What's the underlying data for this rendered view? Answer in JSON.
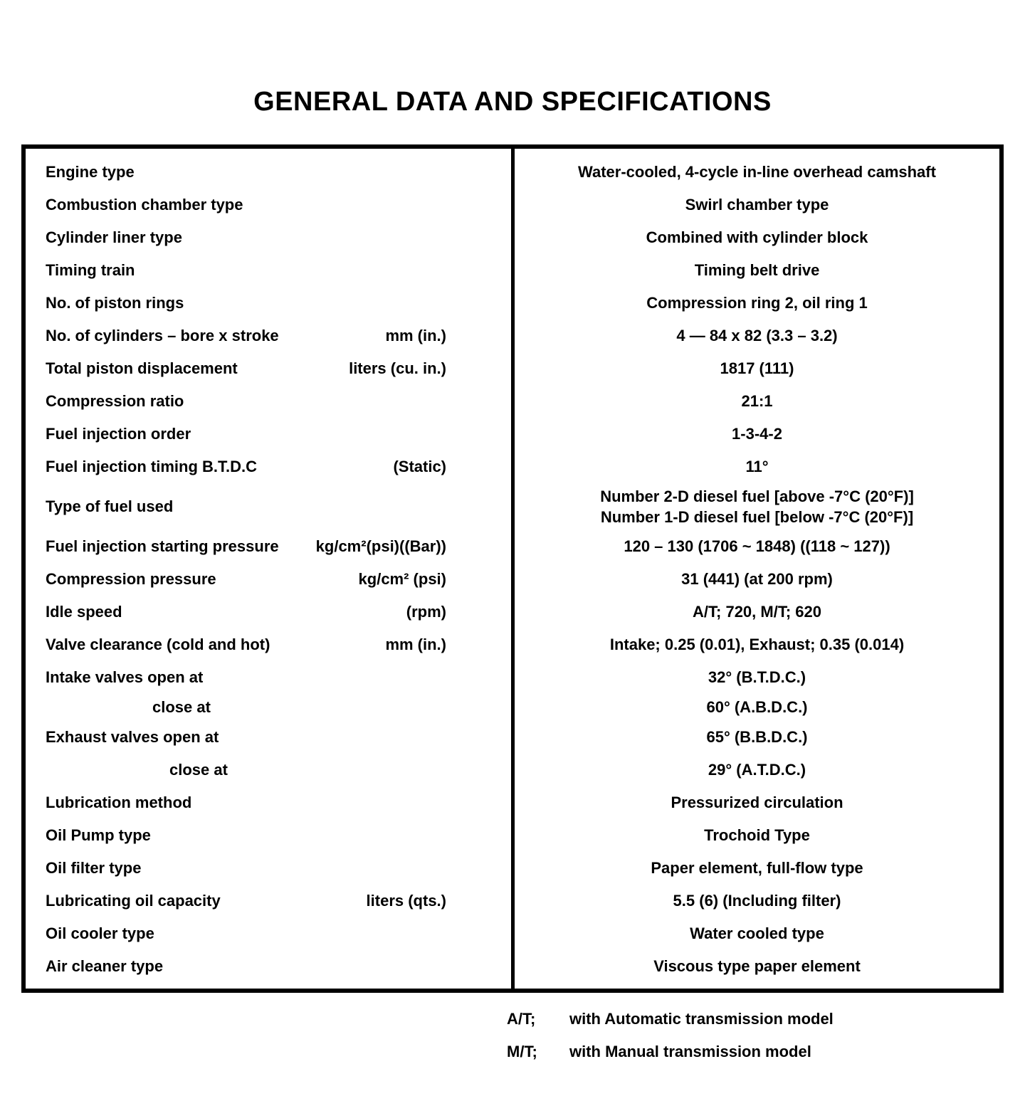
{
  "page": {
    "title": "GENERAL DATA AND SPECIFICATIONS"
  },
  "table": {
    "rows": [
      {
        "label": "Engine type",
        "value": "Water-cooled, 4-cycle in-line overhead camshaft"
      },
      {
        "label": "Combustion chamber type",
        "value": "Swirl chamber type"
      },
      {
        "label": "Cylinder liner type",
        "value": "Combined with cylinder block"
      },
      {
        "label": "Timing train",
        "value": "Timing belt drive"
      },
      {
        "label": "No. of piston rings",
        "value": "Compression ring 2, oil ring 1"
      },
      {
        "label": "No. of cylinders – bore x stroke",
        "unit": "mm (in.)",
        "value": "4 — 84 x 82 (3.3 – 3.2)"
      },
      {
        "label": "Total piston displacement",
        "unit": "liters (cu. in.)",
        "value": "1817 (111)"
      },
      {
        "label": "Compression ratio",
        "value": "21:1"
      },
      {
        "label": "Fuel injection order",
        "value": "1-3-4-2"
      },
      {
        "label": "Fuel injection timing B.T.D.C",
        "unit": "(Static)",
        "value": "11°"
      },
      {
        "label": "Type of fuel used",
        "value": "Number 2-D diesel fuel [above -7°C (20°F)]",
        "value2": "Number 1-D diesel fuel [below -7°C (20°F)]"
      },
      {
        "label": "Fuel injection starting pressure",
        "unit": "kg/cm²(psi)((Bar))",
        "value": "120 – 130 (1706 ~ 1848) ((118 ~ 127))"
      },
      {
        "label": "Compression pressure",
        "unit": "kg/cm² (psi)",
        "value": "31 (441) (at 200 rpm)"
      },
      {
        "label": "Idle speed",
        "unit": "(rpm)",
        "value": "A/T; 720, M/T; 620"
      },
      {
        "label": "Valve clearance (cold and hot)",
        "unit": "mm (in.)",
        "value": "Intake; 0.25 (0.01), Exhaust; 0.35 (0.014)"
      },
      {
        "label": "Intake valves open at",
        "value": "32° (B.T.D.C.)"
      },
      {
        "label": "close at",
        "value": "60° (A.B.D.C.)"
      },
      {
        "label": "Exhaust valves open at",
        "value": "65° (B.B.D.C.)"
      },
      {
        "label": "close at",
        "value": "29° (A.T.D.C.)"
      },
      {
        "label": "Lubrication method",
        "value": "Pressurized circulation"
      },
      {
        "label": "Oil Pump type",
        "value": "Trochoid Type"
      },
      {
        "label": "Oil filter type",
        "value": "Paper element, full-flow type"
      },
      {
        "label": "Lubricating oil capacity",
        "unit": "liters (qts.)",
        "value": "5.5 (6) (Including filter)"
      },
      {
        "label": "Oil cooler type",
        "value": "Water cooled type"
      },
      {
        "label": "Air cleaner type",
        "value": "Viscous type paper element"
      }
    ]
  },
  "footnotes": [
    {
      "abbr": "A/T;",
      "text": "with Automatic transmission model"
    },
    {
      "abbr": "M/T;",
      "text": "with Manual transmission model"
    }
  ]
}
